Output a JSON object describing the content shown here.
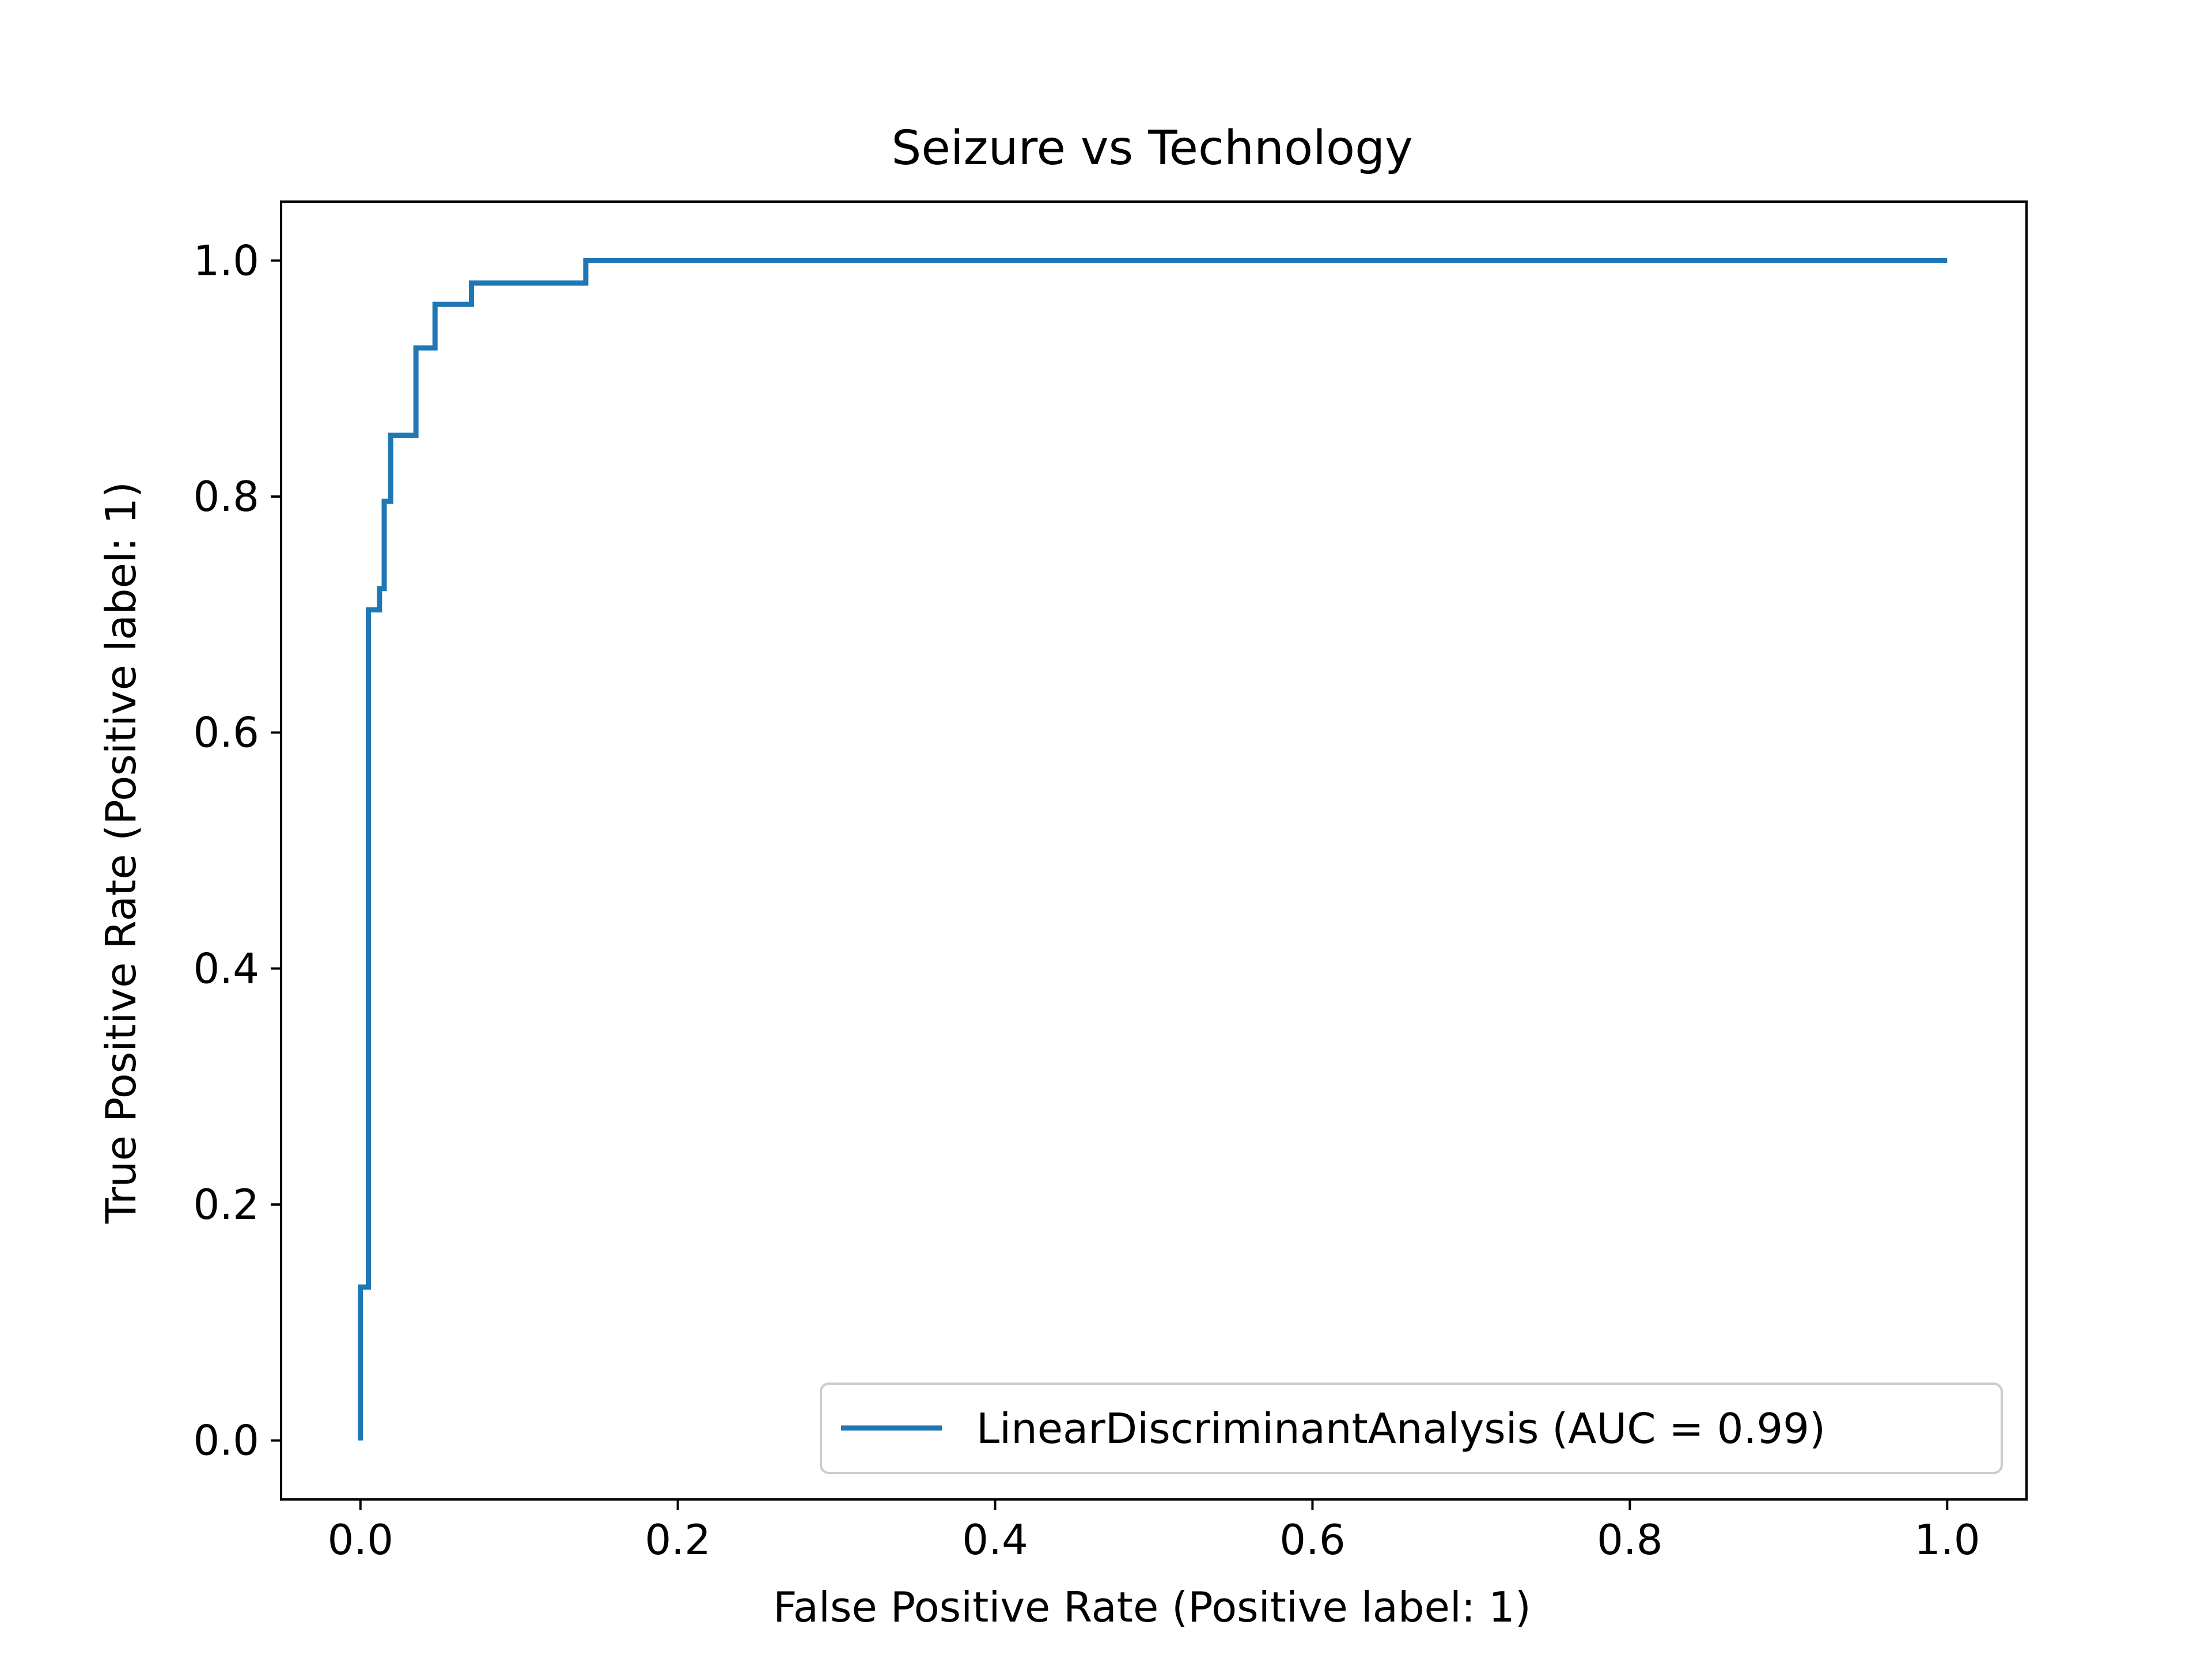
{
  "chart_data": {
    "type": "line",
    "title": "Seizure vs Technology",
    "xlabel": "False Positive Rate (Positive label: 1)",
    "ylabel": "True Positive Rate (Positive label: 1)",
    "xlim": [
      -0.05,
      1.05
    ],
    "ylim": [
      -0.05,
      1.05
    ],
    "xticks": [
      "0.0",
      "0.2",
      "0.4",
      "0.6",
      "0.8",
      "1.0"
    ],
    "yticks": [
      "0.0",
      "0.2",
      "0.4",
      "0.6",
      "0.8",
      "1.0"
    ],
    "grid": false,
    "legend": {
      "position": "lower right",
      "entries": [
        "LinearDiscriminantAnalysis (AUC = 0.99)"
      ]
    },
    "series": [
      {
        "name": "LinearDiscriminantAnalysis (AUC = 0.99)",
        "color": "#1f77b4",
        "x": [
          0.0,
          0.0,
          0.005,
          0.005,
          0.012,
          0.012,
          0.015,
          0.015,
          0.019,
          0.019,
          0.021,
          0.021,
          0.035,
          0.035,
          0.047,
          0.047,
          0.07,
          0.07,
          0.142,
          0.142,
          1.0
        ],
        "y": [
          0.0,
          0.13,
          0.13,
          0.704,
          0.704,
          0.722,
          0.722,
          0.796,
          0.796,
          0.852,
          0.852,
          0.852,
          0.852,
          0.926,
          0.926,
          0.963,
          0.963,
          0.981,
          0.981,
          1.0,
          1.0
        ]
      }
    ]
  }
}
